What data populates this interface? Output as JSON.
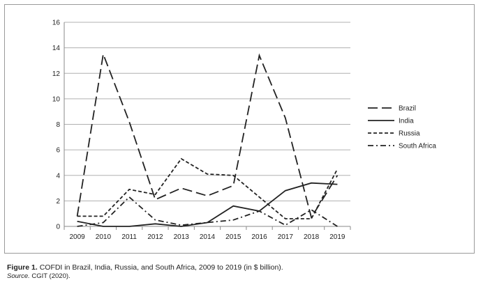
{
  "figure": {
    "label": "Figure 1.",
    "caption": "COFDI in Brazil, India, Russia, and South Africa, 2009 to 2019 (in $ billion).",
    "source_label": "Source.",
    "source_text": "CGIT (2020)."
  },
  "chart_data": {
    "type": "line",
    "x": [
      "2009",
      "2010",
      "2011",
      "2012",
      "2013",
      "2014",
      "2015",
      "2016",
      "2017",
      "2018",
      "2019"
    ],
    "ylim": [
      0,
      16
    ],
    "yticks": [
      0,
      2,
      4,
      6,
      8,
      10,
      12,
      14,
      16
    ],
    "grid": "horizontal",
    "legend": "right",
    "series": [
      {
        "name": "Brazil",
        "style": "long-dash",
        "color": "#222222",
        "values": [
          0.8,
          13.5,
          8.2,
          2.1,
          3.0,
          2.4,
          3.2,
          13.4,
          8.5,
          0.7,
          4.0
        ]
      },
      {
        "name": "India",
        "style": "solid",
        "color": "#222222",
        "values": [
          0.4,
          0.0,
          0.0,
          0.2,
          0.0,
          0.3,
          1.6,
          1.2,
          2.8,
          3.4,
          3.3
        ]
      },
      {
        "name": "Russia",
        "style": "short-dash",
        "color": "#222222",
        "values": [
          0.8,
          0.8,
          2.9,
          2.5,
          5.3,
          4.1,
          4.0,
          2.3,
          0.6,
          0.6,
          4.5
        ]
      },
      {
        "name": "South Africa",
        "style": "dash-dot",
        "color": "#222222",
        "values": [
          0.0,
          0.3,
          2.3,
          0.5,
          0.1,
          0.3,
          0.5,
          1.2,
          0.1,
          1.3,
          0.0
        ]
      }
    ]
  }
}
